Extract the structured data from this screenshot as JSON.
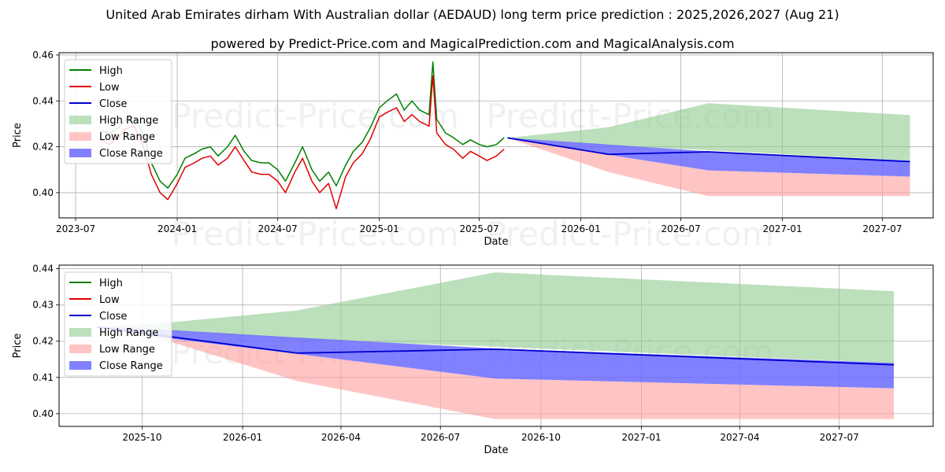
{
  "header": {
    "title": "United Arab Emirates dirham With Australian dollar (AEDAUD) long term price prediction : 2025,2026,2027 (Aug 21)",
    "subtitle": "powered by Predict-Price.com and MagicalPrediction.com and MagicalAnalysis.com"
  },
  "watermark": "Predict-Price.com",
  "colors": {
    "high": "#008000",
    "low": "#e00000",
    "close": "#0000cc",
    "high_range": "#8fc98f",
    "low_range": "#ff9f9f",
    "close_range": "#6b6bff"
  },
  "chart_data": [
    {
      "type": "line",
      "xlabel": "Date",
      "ylabel": "Price",
      "xlim": [
        "2023-06-01",
        "2027-10-01"
      ],
      "ylim": [
        0.389,
        0.461
      ],
      "yticks": [
        0.4,
        0.42,
        0.44,
        0.46
      ],
      "ytick_labels": [
        "0.40",
        "0.42",
        "0.44",
        "0.46"
      ],
      "xticks": [
        "2023-07-01",
        "2024-01-01",
        "2024-07-01",
        "2025-01-01",
        "2025-07-01",
        "2026-01-01",
        "2026-07-01",
        "2027-01-01",
        "2027-07-01"
      ],
      "xtick_labels": [
        "2023-07",
        "2024-01",
        "2024-07",
        "2025-01",
        "2025-07",
        "2026-01",
        "2026-07",
        "2027-01",
        "2027-07"
      ],
      "grid": true,
      "legend_position": "upper-left",
      "legend": [
        "High",
        "Low",
        "Close",
        "High Range",
        "Low Range",
        "Close Range"
      ],
      "series": [
        {
          "name": "High",
          "x": [
            "2023-08-15",
            "2023-09-01",
            "2023-09-15",
            "2023-10-01",
            "2023-10-15",
            "2023-11-01",
            "2023-11-15",
            "2023-12-01",
            "2023-12-15",
            "2024-01-01",
            "2024-01-15",
            "2024-02-01",
            "2024-02-15",
            "2024-03-01",
            "2024-03-15",
            "2024-04-01",
            "2024-04-15",
            "2024-05-01",
            "2024-05-15",
            "2024-06-01",
            "2024-06-15",
            "2024-07-01",
            "2024-07-15",
            "2024-08-01",
            "2024-08-15",
            "2024-09-01",
            "2024-09-15",
            "2024-10-01",
            "2024-10-15",
            "2024-11-01",
            "2024-11-15",
            "2024-12-01",
            "2024-12-15",
            "2025-01-01",
            "2025-01-15",
            "2025-02-01",
            "2025-02-15",
            "2025-03-01",
            "2025-03-15",
            "2025-04-01",
            "2025-04-08",
            "2025-04-15",
            "2025-05-01",
            "2025-05-15",
            "2025-06-01",
            "2025-06-15",
            "2025-07-01",
            "2025-07-15",
            "2025-08-01",
            "2025-08-15"
          ],
          "values": [
            0.427,
            0.426,
            0.428,
            0.432,
            0.433,
            0.425,
            0.413,
            0.405,
            0.402,
            0.408,
            0.415,
            0.417,
            0.419,
            0.42,
            0.416,
            0.42,
            0.425,
            0.418,
            0.414,
            0.413,
            0.413,
            0.41,
            0.405,
            0.413,
            0.42,
            0.41,
            0.405,
            0.409,
            0.403,
            0.412,
            0.418,
            0.422,
            0.428,
            0.437,
            0.44,
            0.443,
            0.436,
            0.44,
            0.436,
            0.434,
            0.457,
            0.432,
            0.426,
            0.424,
            0.421,
            0.423,
            0.421,
            0.42,
            0.421,
            0.424
          ]
        },
        {
          "name": "Low",
          "x": [
            "2023-08-15",
            "2023-09-01",
            "2023-09-15",
            "2023-10-01",
            "2023-10-15",
            "2023-11-01",
            "2023-11-15",
            "2023-12-01",
            "2023-12-15",
            "2024-01-01",
            "2024-01-15",
            "2024-02-01",
            "2024-02-15",
            "2024-03-01",
            "2024-03-15",
            "2024-04-01",
            "2024-04-15",
            "2024-05-01",
            "2024-05-15",
            "2024-06-01",
            "2024-06-15",
            "2024-07-01",
            "2024-07-15",
            "2024-08-01",
            "2024-08-15",
            "2024-09-01",
            "2024-09-15",
            "2024-10-01",
            "2024-10-15",
            "2024-11-01",
            "2024-11-15",
            "2024-12-01",
            "2024-12-15",
            "2025-01-01",
            "2025-01-15",
            "2025-02-01",
            "2025-02-15",
            "2025-03-01",
            "2025-03-15",
            "2025-04-01",
            "2025-04-08",
            "2025-04-15",
            "2025-05-01",
            "2025-05-15",
            "2025-06-01",
            "2025-06-15",
            "2025-07-01",
            "2025-07-15",
            "2025-08-01",
            "2025-08-15"
          ],
          "values": [
            0.423,
            0.421,
            0.424,
            0.428,
            0.429,
            0.42,
            0.408,
            0.4,
            0.397,
            0.404,
            0.411,
            0.413,
            0.415,
            0.416,
            0.412,
            0.415,
            0.42,
            0.414,
            0.409,
            0.408,
            0.408,
            0.405,
            0.4,
            0.409,
            0.415,
            0.405,
            0.4,
            0.404,
            0.393,
            0.407,
            0.413,
            0.417,
            0.423,
            0.433,
            0.435,
            0.437,
            0.431,
            0.434,
            0.431,
            0.429,
            0.451,
            0.426,
            0.421,
            0.419,
            0.415,
            0.418,
            0.416,
            0.414,
            0.416,
            0.419
          ]
        },
        {
          "name": "Close",
          "x": [
            "2025-08-21",
            "2026-02-20",
            "2026-08-20",
            "2027-08-20"
          ],
          "values": [
            0.4239,
            0.4167,
            0.4178,
            0.4135
          ]
        }
      ],
      "ranges": [
        {
          "name": "High Range",
          "x": [
            "2025-08-21",
            "2026-02-20",
            "2026-08-20",
            "2027-08-20"
          ],
          "upper": [
            0.4239,
            0.4285,
            0.439,
            0.4338
          ],
          "lower": [
            0.4239,
            0.4205,
            0.4185,
            0.414
          ]
        },
        {
          "name": "Low Range",
          "x": [
            "2025-08-21",
            "2026-02-20",
            "2026-08-20",
            "2027-08-20"
          ],
          "upper": [
            0.4239,
            0.4165,
            0.4097,
            0.407
          ],
          "lower": [
            0.4239,
            0.409,
            0.3985,
            0.3985
          ]
        },
        {
          "name": "Close Range",
          "x": [
            "2025-08-21",
            "2026-02-20",
            "2026-08-20",
            "2027-08-20"
          ],
          "upper": [
            0.4239,
            0.421,
            0.418,
            0.414
          ],
          "lower": [
            0.4239,
            0.4165,
            0.4097,
            0.407
          ]
        }
      ]
    },
    {
      "type": "line",
      "xlabel": "Date",
      "ylabel": "Price",
      "xlim": [
        "2025-07-17",
        "2027-09-25"
      ],
      "ylim": [
        0.3965,
        0.441
      ],
      "yticks": [
        0.4,
        0.41,
        0.42,
        0.43,
        0.44
      ],
      "ytick_labels": [
        "0.40",
        "0.41",
        "0.42",
        "0.43",
        "0.44"
      ],
      "xticks": [
        "2025-10-01",
        "2026-01-01",
        "2026-04-01",
        "2026-07-01",
        "2026-10-01",
        "2027-01-01",
        "2027-04-01",
        "2027-07-01"
      ],
      "xtick_labels": [
        "2025-10",
        "2026-01",
        "2026-04",
        "2026-07",
        "2026-10",
        "2027-01",
        "2027-04",
        "2027-07"
      ],
      "grid": true,
      "legend_position": "upper-left",
      "legend": [
        "High",
        "Low",
        "Close",
        "High Range",
        "Low Range",
        "Close Range"
      ],
      "series": [
        {
          "name": "Close",
          "x": [
            "2025-08-21",
            "2025-10-20",
            "2026-02-20",
            "2026-08-20",
            "2027-08-20"
          ],
          "values": [
            0.4239,
            0.4215,
            0.4167,
            0.4178,
            0.4135
          ]
        }
      ],
      "ranges": [
        {
          "name": "High Range",
          "x": [
            "2025-08-21",
            "2025-10-20",
            "2026-02-20",
            "2026-08-20",
            "2027-08-20"
          ],
          "upper": [
            0.4239,
            0.425,
            0.4285,
            0.439,
            0.4338
          ],
          "lower": [
            0.4239,
            0.423,
            0.4205,
            0.4185,
            0.414
          ]
        },
        {
          "name": "Low Range",
          "x": [
            "2025-08-21",
            "2025-10-20",
            "2026-02-20",
            "2026-08-20",
            "2027-08-20"
          ],
          "upper": [
            0.4239,
            0.421,
            0.4165,
            0.4097,
            0.407
          ],
          "lower": [
            0.4239,
            0.4205,
            0.409,
            0.3985,
            0.3985
          ]
        },
        {
          "name": "Close Range",
          "x": [
            "2025-08-21",
            "2025-10-20",
            "2026-02-20",
            "2026-08-20",
            "2027-08-20"
          ],
          "upper": [
            0.4239,
            0.4232,
            0.421,
            0.418,
            0.414
          ],
          "lower": [
            0.4239,
            0.421,
            0.4165,
            0.4097,
            0.407
          ]
        }
      ]
    }
  ]
}
